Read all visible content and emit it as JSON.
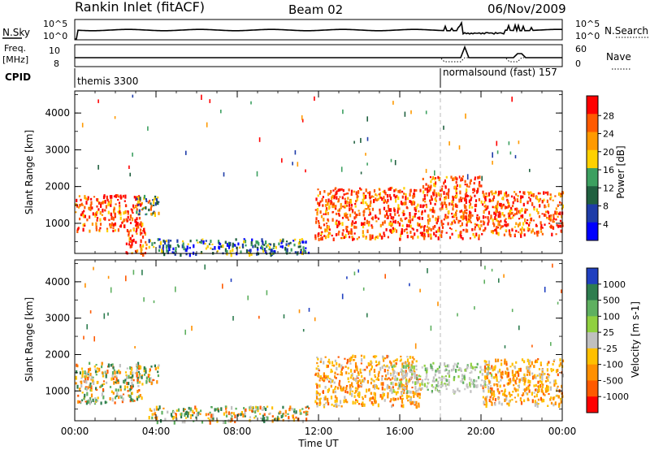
{
  "header": {
    "station": "Rankin Inlet (fitACF)",
    "beam": "Beam 02",
    "date": "06/Nov/2009"
  },
  "status_panels": {
    "nsky_label": "N.Sky",
    "nsky_ticks": [
      "10^5",
      "10^0"
    ],
    "nsearch_label": "N.Search",
    "nsearch_ticks": [
      "10^5",
      "10^0"
    ],
    "freq_label_1": "Freq.",
    "freq_label_2": "[MHz]",
    "freq_ticks": [
      "10",
      "8"
    ],
    "nave_label": "Nave",
    "nave_ticks": [
      "60",
      "0"
    ],
    "cpid_label": "CPID",
    "cpid_mode_1": "themis 3300",
    "cpid_mode_2": "normalsound (fast) 157",
    "cpid_change_hour": 18.0
  },
  "chart_data": [
    {
      "type": "heatmap",
      "title": "",
      "xlabel": "Time UT",
      "ylabel": "Slant Range [km]",
      "xlim": [
        0,
        24
      ],
      "ylim": [
        180,
        4600
      ],
      "x_ticks": [
        "00:00",
        "04:00",
        "08:00",
        "12:00",
        "16:00",
        "20:00",
        "00:00"
      ],
      "y_ticks": [
        "1000",
        "2000",
        "3000",
        "4000"
      ],
      "colorbar": {
        "label": "Power [dB]",
        "ticks": [
          "28",
          "24",
          "20",
          "16",
          "12",
          "8",
          "4"
        ],
        "colors": [
          "#ff0000",
          "#ff5a00",
          "#ff9a00",
          "#ffd100",
          "#3ca060",
          "#206040",
          "#1e3ca8",
          "#0000ff"
        ]
      },
      "echo_regions": [
        {
          "t": [
            0.0,
            3.3
          ],
          "r": [
            800,
            1800
          ],
          "level": "high"
        },
        {
          "t": [
            3.0,
            4.1
          ],
          "r": [
            1200,
            1800
          ],
          "level": "mixed"
        },
        {
          "t": [
            2.5,
            3.5
          ],
          "r": [
            180,
            900
          ],
          "level": "high"
        },
        {
          "t": [
            3.6,
            11.5
          ],
          "r": [
            180,
            600
          ],
          "level": "low"
        },
        {
          "t": [
            11.8,
            17.0
          ],
          "r": [
            600,
            2000
          ],
          "level": "high"
        },
        {
          "t": [
            17.0,
            20.0
          ],
          "r": [
            600,
            2300
          ],
          "level": "high"
        },
        {
          "t": [
            20.0,
            24.0
          ],
          "r": [
            700,
            1900
          ],
          "level": "high"
        }
      ]
    },
    {
      "type": "heatmap",
      "title": "",
      "xlabel": "Time UT",
      "ylabel": "Slant Range [km]",
      "xlim": [
        0,
        24
      ],
      "ylim": [
        180,
        4600
      ],
      "x_ticks": [
        "00:00",
        "04:00",
        "08:00",
        "12:00",
        "16:00",
        "20:00",
        "00:00"
      ],
      "y_ticks": [
        "1000",
        "2000",
        "3000",
        "4000"
      ],
      "colorbar": {
        "label": "Velocity [m s-1]",
        "ticks": [
          "1000",
          "500",
          "100",
          "25",
          "-25",
          "-100",
          "-500",
          "-1000"
        ],
        "colors": [
          "#2040c0",
          "#2e7d4f",
          "#5fb060",
          "#90d040",
          "#c0c0c0",
          "#ffc000",
          "#ff9000",
          "#ff5a00",
          "#ff0000"
        ]
      },
      "echo_regions": [
        {
          "t": [
            0.0,
            3.3
          ],
          "r": [
            700,
            1800
          ],
          "level": "mixed"
        },
        {
          "t": [
            3.0,
            4.1
          ],
          "r": [
            1200,
            1800
          ],
          "level": "mixed"
        },
        {
          "t": [
            3.6,
            11.5
          ],
          "r": [
            180,
            600
          ],
          "level": "mixed"
        },
        {
          "t": [
            11.8,
            17.0
          ],
          "r": [
            600,
            2000
          ],
          "level": "negative"
        },
        {
          "t": [
            15.5,
            20.5
          ],
          "r": [
            1000,
            1800
          ],
          "level": "ground"
        },
        {
          "t": [
            20.0,
            24.0
          ],
          "r": [
            600,
            1900
          ],
          "level": "negative"
        }
      ]
    }
  ]
}
